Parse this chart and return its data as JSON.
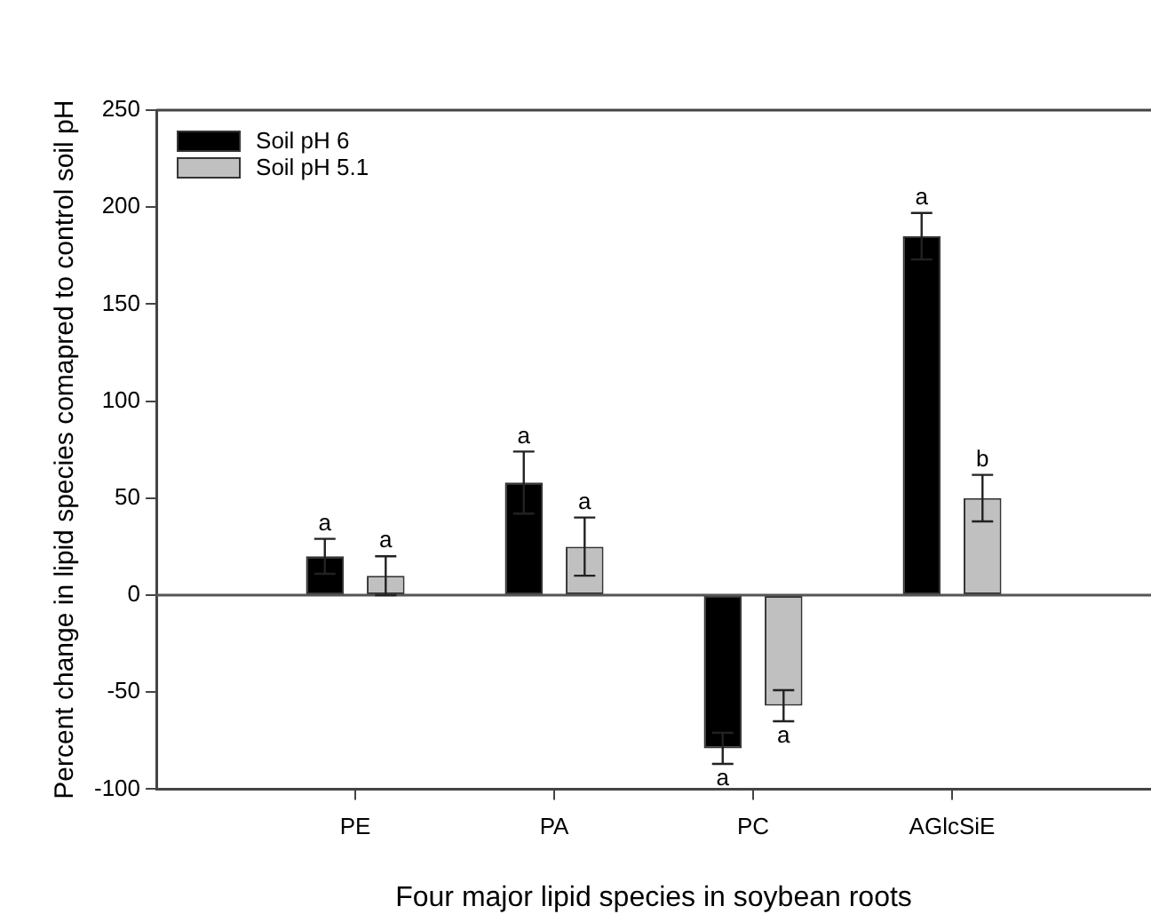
{
  "chart_data": {
    "type": "bar",
    "xlabel": "Four major lipid species in soybean roots",
    "ylabel": "Percent change in lipid species comapred to control soil pH",
    "categories": [
      "PE",
      "PA",
      "PC",
      "AGlcSiE"
    ],
    "series": [
      {
        "name": "Soil pH 6",
        "color": "#000000",
        "values": [
          20,
          58,
          -79,
          185
        ],
        "errors": [
          9,
          16,
          8,
          12
        ],
        "value_labels": [
          "a",
          "a",
          "a",
          "a"
        ]
      },
      {
        "name": "Soil pH 5.1",
        "color": "#c0c0c0",
        "values": [
          10,
          25,
          -57,
          50
        ],
        "errors": [
          10,
          15,
          8,
          12
        ],
        "value_labels": [
          "a",
          "a",
          "a",
          "b"
        ]
      }
    ],
    "ylim": [
      -100,
      250
    ],
    "yticks": [
      -100,
      -50,
      0,
      50,
      100,
      150,
      200,
      250
    ],
    "ref_lines": [
      {
        "axis": "y",
        "value": 0,
        "color": "#555555"
      }
    ],
    "grid": false,
    "legend": "top left"
  }
}
